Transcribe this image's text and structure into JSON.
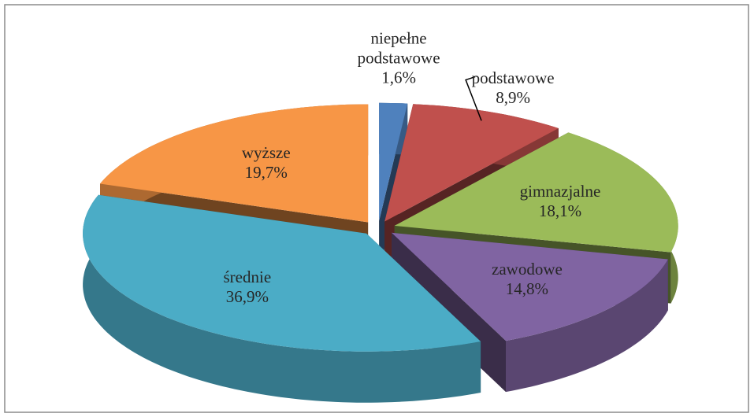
{
  "chart_data": {
    "type": "pie3d",
    "categories": [
      "niepełne podstawowe",
      "podstawowe",
      "gimnazjalne",
      "zawodowe",
      "średnie",
      "wyższe"
    ],
    "values": [
      1.6,
      8.9,
      18.1,
      14.8,
      36.9,
      19.7
    ],
    "value_labels": [
      "1,6%",
      "8,9%",
      "18,1%",
      "14,8%",
      "36,9%",
      "19,7%"
    ],
    "colors": [
      "#4f81bd",
      "#c0504d",
      "#9bbb59",
      "#8064a2",
      "#4bacc6",
      "#f79646"
    ]
  }
}
